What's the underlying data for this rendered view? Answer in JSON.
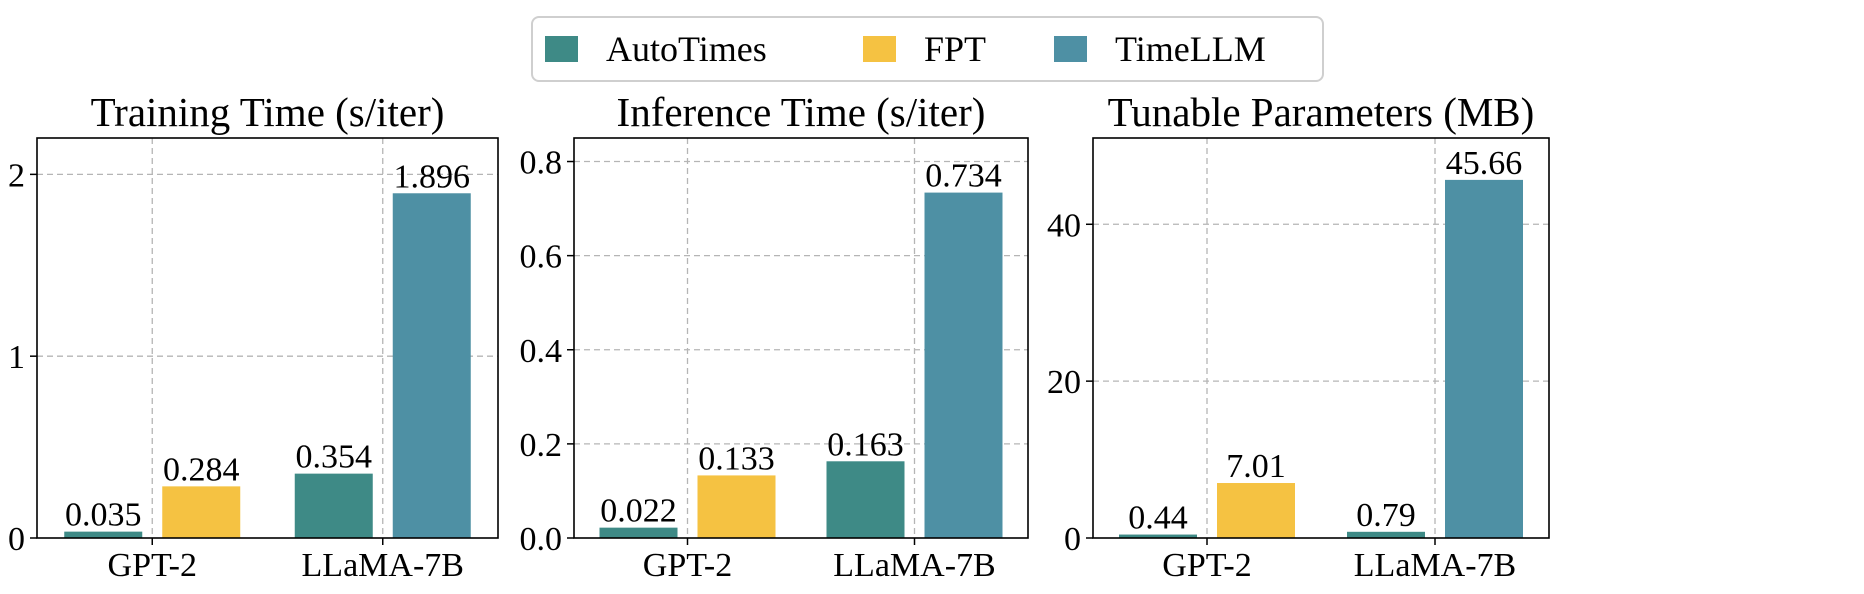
{
  "legend": {
    "items": [
      {
        "label": "AutoTimes",
        "color": "#3e8a86"
      },
      {
        "label": "FPT",
        "color": "#f5c242"
      },
      {
        "label": "TimeLLM",
        "color": "#4e90a4"
      }
    ]
  },
  "chart_data": [
    {
      "type": "bar",
      "title": "Training Time (s/iter)",
      "categories": [
        "GPT-2",
        "LLaMA-7B"
      ],
      "series": [
        {
          "name": "AutoTimes",
          "values": [
            0.035,
            0.354
          ],
          "labels": [
            "0.035",
            "0.354"
          ]
        },
        {
          "name": "FPT",
          "values": [
            0.284,
            null
          ],
          "labels": [
            "0.284",
            ""
          ]
        },
        {
          "name": "TimeLLM",
          "values": [
            null,
            1.896
          ],
          "labels": [
            "",
            "1.896"
          ]
        }
      ],
      "ylim": [
        0,
        2.2
      ],
      "yticks": [
        0,
        1,
        2
      ],
      "ytick_labels": [
        "0",
        "1",
        "2"
      ],
      "grid": true
    },
    {
      "type": "bar",
      "title": "Inference Time (s/iter)",
      "categories": [
        "GPT-2",
        "LLaMA-7B"
      ],
      "series": [
        {
          "name": "AutoTimes",
          "values": [
            0.022,
            0.163
          ],
          "labels": [
            "0.022",
            "0.163"
          ]
        },
        {
          "name": "FPT",
          "values": [
            0.133,
            null
          ],
          "labels": [
            "0.133",
            ""
          ]
        },
        {
          "name": "TimeLLM",
          "values": [
            null,
            0.734
          ],
          "labels": [
            "",
            "0.734"
          ]
        }
      ],
      "ylim": [
        0,
        0.85
      ],
      "yticks": [
        0,
        0.2,
        0.4,
        0.6,
        0.8
      ],
      "ytick_labels": [
        "0.0",
        "0.2",
        "0.4",
        "0.6",
        "0.8"
      ],
      "grid": true
    },
    {
      "type": "bar",
      "title": "Tunable Parameters (MB)",
      "categories": [
        "GPT-2",
        "LLaMA-7B"
      ],
      "series": [
        {
          "name": "AutoTimes",
          "values": [
            0.44,
            0.79
          ],
          "labels": [
            "0.44",
            "0.79"
          ]
        },
        {
          "name": "FPT",
          "values": [
            7.01,
            null
          ],
          "labels": [
            "7.01",
            ""
          ]
        },
        {
          "name": "TimeLLM",
          "values": [
            null,
            45.66
          ],
          "labels": [
            "",
            "45.66"
          ]
        }
      ],
      "ylim": [
        0,
        51
      ],
      "yticks": [
        0,
        20,
        40
      ],
      "ytick_labels": [
        "0",
        "20",
        "40"
      ],
      "grid": true
    }
  ]
}
